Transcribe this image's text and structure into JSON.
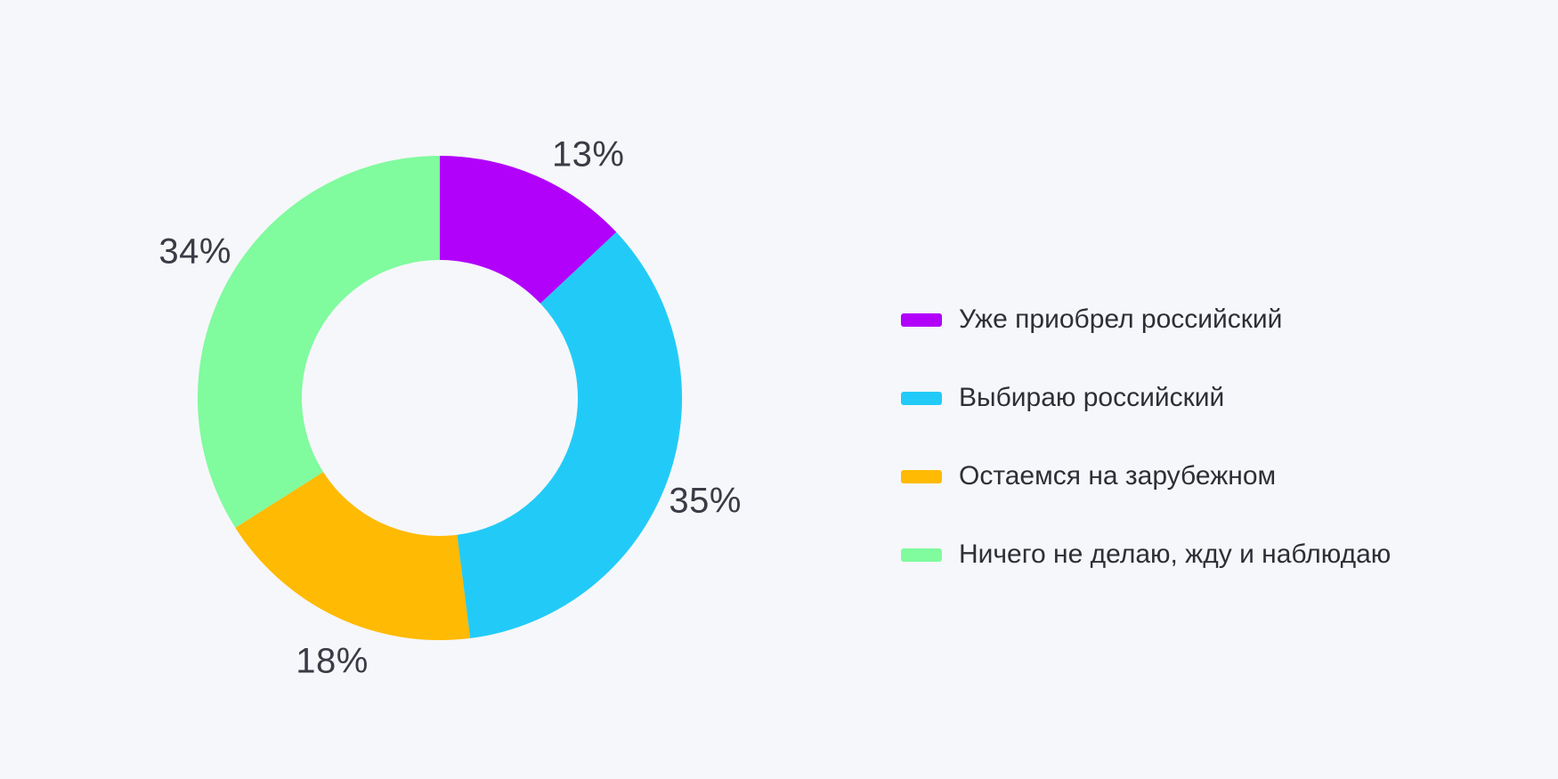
{
  "background": "#F6F7FA",
  "text_color_labels": "#3A3B45",
  "text_color_legend": "#2E2F36",
  "chart_data": {
    "type": "pie",
    "subtype": "donut",
    "hole_ratio": 0.57,
    "direction": "clockwise",
    "start_angle_deg": 0,
    "categories": [
      "Уже приобрел российский",
      "Выбираю российский",
      "Остаемся на зарубежном",
      "Ничего не делаю, жду и наблюдаю"
    ],
    "values": [
      13,
      35,
      18,
      34
    ],
    "labels": [
      "13%",
      "35%",
      "18%",
      "34%"
    ],
    "colors": [
      "#B101FA",
      "#22CBF7",
      "#FFBA03",
      "#80FB9E"
    ],
    "legend_position": "right",
    "title": ""
  },
  "legend": {
    "items": [
      {
        "label": "Уже приобрел российский",
        "color": "#B101FA"
      },
      {
        "label": "Выбираю российский",
        "color": "#22CBF7"
      },
      {
        "label": "Остаемся на зарубежном",
        "color": "#FFBA03"
      },
      {
        "label": "Ничего не делаю, жду и наблюдаю",
        "color": "#80FB9E"
      }
    ]
  }
}
